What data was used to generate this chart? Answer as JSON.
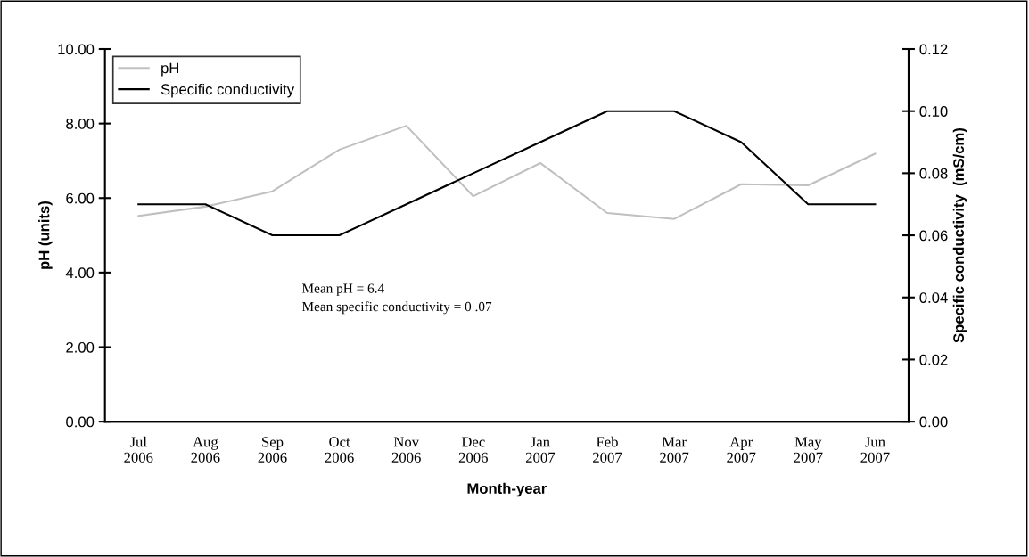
{
  "chart_data": {
    "type": "line",
    "xlabel": "Month-year",
    "ylabel": "pH (units)",
    "y2label": "Specific conductivity  (mS/cm)",
    "categories": [
      "Jul\n2006",
      "Aug\n2006",
      "Sep\n2006",
      "Oct\n2006",
      "Nov\n2006",
      "Dec\n2006",
      "Jan\n2007",
      "Feb\n2007",
      "Mar\n2007",
      "Apr\n2007",
      "May\n2007",
      "Jun\n2007"
    ],
    "series": [
      {
        "name": "pH",
        "color": "#c0c0c0",
        "values": [
          5.52,
          5.77,
          6.18,
          7.3,
          7.94,
          6.05,
          6.94,
          5.6,
          5.44,
          6.37,
          6.34,
          7.19
        ]
      },
      {
        "name": "Specific conductivity",
        "color": "#000000",
        "axis": "y2",
        "values": [
          0.07,
          0.07,
          0.06,
          0.06,
          0.07,
          0.08,
          0.09,
          0.1,
          0.1,
          0.09,
          0.07,
          0.07
        ]
      }
    ],
    "ylim": [
      0,
      10
    ],
    "yticks": [
      {
        "value": 0,
        "label": "0.00"
      },
      {
        "value": 2,
        "label": "2.00"
      },
      {
        "value": 4,
        "label": "4.00"
      },
      {
        "value": 6,
        "label": "6.00"
      },
      {
        "value": 8,
        "label": "8.00"
      },
      {
        "value": 10,
        "label": "10.00"
      }
    ],
    "y2lim": [
      0,
      0.12
    ],
    "y2ticks": [
      {
        "value": 0,
        "label": "0.00"
      },
      {
        "value": 0.02,
        "label": "0.02"
      },
      {
        "value": 0.04,
        "label": "0.04"
      },
      {
        "value": 0.06,
        "label": "0.06"
      },
      {
        "value": 0.08,
        "label": "0.08"
      },
      {
        "value": 0.1,
        "label": "0.10"
      },
      {
        "value": 0.12,
        "label": "0.12"
      }
    ],
    "annotations": [
      "Mean pH = 6.4\nMean specific conductivity = 0 .07"
    ],
    "legend": "top left",
    "grid": false,
    "marker": "none",
    "line_style": "solid"
  }
}
